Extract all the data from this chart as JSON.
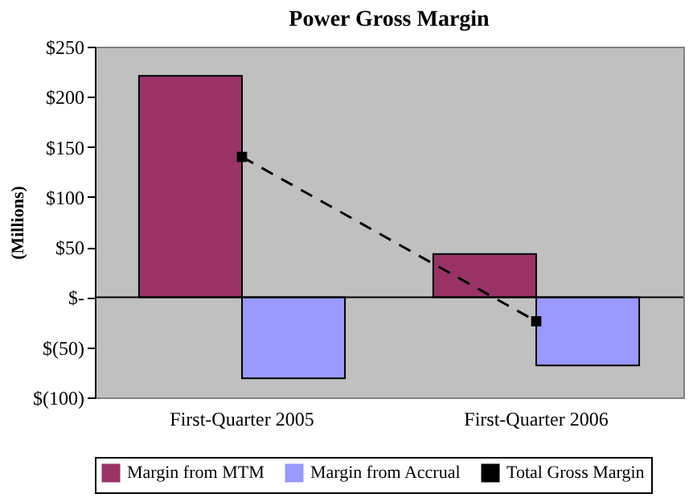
{
  "chart_data": {
    "type": "bar",
    "title": "Power Gross Margin",
    "ylabel": "(Millions)",
    "categories": [
      "First-Quarter 2005",
      "First-Quarter 2006"
    ],
    "series": [
      {
        "name": "Margin from MTM",
        "color": "#993366",
        "values": [
          221,
          43
        ]
      },
      {
        "name": "Margin from Accrual",
        "color": "#9999ff",
        "values": [
          -81,
          -68
        ]
      },
      {
        "name": "Total Gross Margin",
        "type": "line",
        "color": "#000000",
        "values": [
          140,
          -24
        ],
        "marker": "square",
        "line_style": "dashed"
      }
    ],
    "ylim": [
      -100,
      250
    ],
    "yticks": [
      {
        "value": -100,
        "label": "$(100)"
      },
      {
        "value": -50,
        "label": "$(50)"
      },
      {
        "value": 0,
        "label": "$-"
      },
      {
        "value": 50,
        "label": "$50"
      },
      {
        "value": 100,
        "label": "$100"
      },
      {
        "value": 150,
        "label": "$150"
      },
      {
        "value": 200,
        "label": "$200"
      },
      {
        "value": 250,
        "label": "$250"
      }
    ],
    "ref_lines": [
      {
        "axis": "y",
        "value": 0,
        "color": "#000000"
      }
    ],
    "grid": false,
    "legend": "bottom"
  }
}
